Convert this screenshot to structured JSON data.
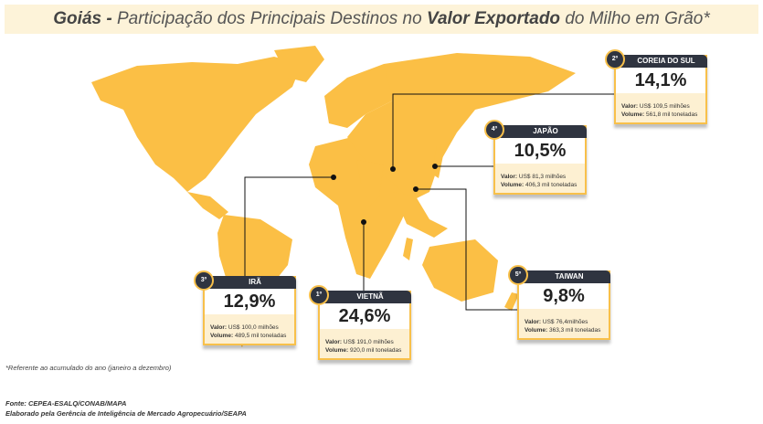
{
  "title": {
    "region": "Goiás -",
    "p1": "Participação dos Principais Destinos no",
    "bold2": "Valor Exportado",
    "p2": "do Milho em Grão*"
  },
  "colors": {
    "map": "#fbbf45",
    "card_header": "#2f3440",
    "card_border": "#f8c04a"
  },
  "chart_data": {
    "type": "table",
    "title": "Goiás - Participação dos Principais Destinos no Valor Exportado do Milho em Grão*",
    "destinations": [
      {
        "rank": "2º",
        "country": "COREIA DO SUL",
        "share": "14,1%",
        "value_label": "Valor:",
        "value": "US$ 109,5 milhões",
        "volume_label": "Volume:",
        "volume": "561,8 mil toneladas"
      },
      {
        "rank": "4º",
        "country": "JAPÃO",
        "share": "10,5%",
        "value_label": "Valor:",
        "value": "US$ 81,3 milhões",
        "volume_label": "Volume:",
        "volume": "406,3 mil toneladas"
      },
      {
        "rank": "3º",
        "country": "IRÃ",
        "share": "12,9%",
        "value_label": "Valor:",
        "value": "US$ 100,0 milhões",
        "volume_label": "Volume:",
        "volume": "489,5 mil toneladas"
      },
      {
        "rank": "1º",
        "country": "VIETNÃ",
        "share": "24,6%",
        "value_label": "Valor:",
        "value": "US$ 191,0 milhões",
        "volume_label": "Volume:",
        "volume": "920,0 mil toneladas"
      },
      {
        "rank": "5º",
        "country": "TAIWAN",
        "share": "9,8%",
        "value_label": "Valor:",
        "value": "US$ 76,4milhões",
        "volume_label": "Volume:",
        "volume": "363,3 mil toneladas"
      }
    ]
  },
  "note": "*Referente ao acumulado do ano (janeiro a dezembro)",
  "source": "Fonte: CEPEA-ESALQ/CONAB/MAPA",
  "credit": "Elaborado pela Gerência de Inteligência de Mercado Agropecuário/SEAPA"
}
